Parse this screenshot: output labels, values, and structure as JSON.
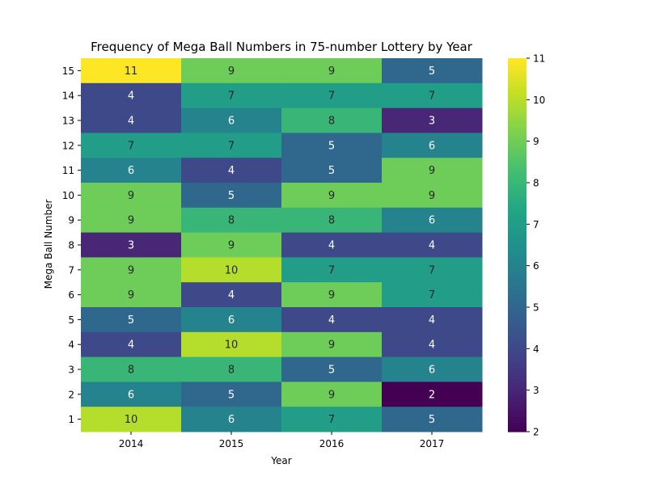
{
  "chart_data": {
    "type": "heatmap",
    "title": "Frequency of Mega Ball Numbers in 75-number Lottery by Year",
    "xlabel": "Year",
    "ylabel": "Mega Ball Number",
    "x_categories": [
      "2014",
      "2015",
      "2016",
      "2017"
    ],
    "y_categories": [
      "15",
      "14",
      "13",
      "12",
      "11",
      "10",
      "9",
      "8",
      "7",
      "6",
      "5",
      "4",
      "3",
      "2",
      "1"
    ],
    "values": [
      [
        11,
        9,
        9,
        5
      ],
      [
        4,
        7,
        7,
        7
      ],
      [
        4,
        6,
        8,
        3
      ],
      [
        7,
        7,
        5,
        6
      ],
      [
        6,
        4,
        5,
        9
      ],
      [
        9,
        5,
        9,
        9
      ],
      [
        9,
        8,
        8,
        6
      ],
      [
        3,
        9,
        4,
        4
      ],
      [
        9,
        10,
        7,
        7
      ],
      [
        9,
        4,
        9,
        7
      ],
      [
        5,
        6,
        4,
        4
      ],
      [
        4,
        10,
        9,
        4
      ],
      [
        8,
        8,
        5,
        6
      ],
      [
        6,
        5,
        9,
        2
      ],
      [
        10,
        6,
        7,
        5
      ]
    ],
    "colorscale": "viridis",
    "color_range": [
      2,
      11
    ],
    "colorbar_ticks": [
      "2",
      "3",
      "4",
      "5",
      "6",
      "7",
      "8",
      "9",
      "10",
      "11"
    ],
    "annotations": true,
    "grid": false,
    "legend_placement": "right"
  }
}
